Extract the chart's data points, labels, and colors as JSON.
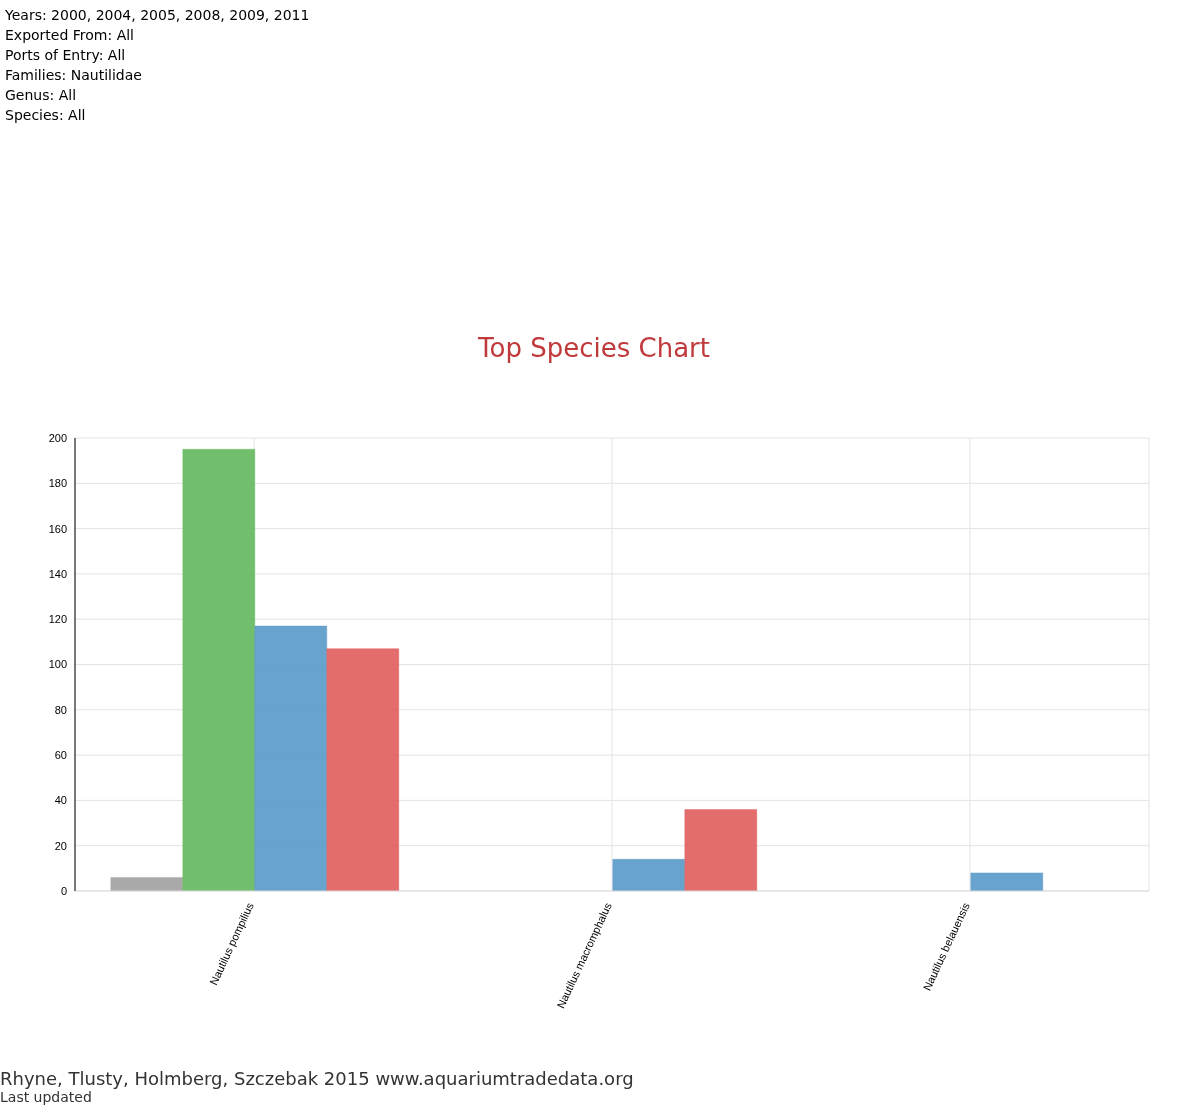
{
  "chart_data": {
    "type": "bar",
    "title": "Top Species Chart",
    "subtitle": "Years: 2000, 2004, 2005, 2008, 2009, 2011\nExported From: All\nPorts of Entry: All\nFamilies: Nautilidae\nGenus: All\nSpecies: All",
    "annotations": [
      "Rhyne, Tlusty, Holmberg, Szczebak 2015 www.aquariumtradedata.org",
      "Last updated"
    ],
    "categories": [
      "Nautilus pompilius",
      "Nautilus macromphalus",
      "Nautilus belauensis"
    ],
    "series": [
      {
        "color": "#a0a0a0",
        "values": [
          6,
          null,
          null
        ]
      },
      {
        "color": "#62b85d",
        "values": [
          195,
          null,
          null
        ]
      },
      {
        "color": "#5799c7",
        "values": [
          117,
          14,
          8
        ]
      },
      {
        "color": "#e05c5c",
        "values": [
          107,
          36,
          null
        ]
      }
    ],
    "ylim": [
      0,
      200
    ],
    "yticks": [
      0,
      20,
      40,
      60,
      80,
      100,
      120,
      140,
      160,
      180,
      200
    ],
    "grid": true,
    "legend": false
  }
}
